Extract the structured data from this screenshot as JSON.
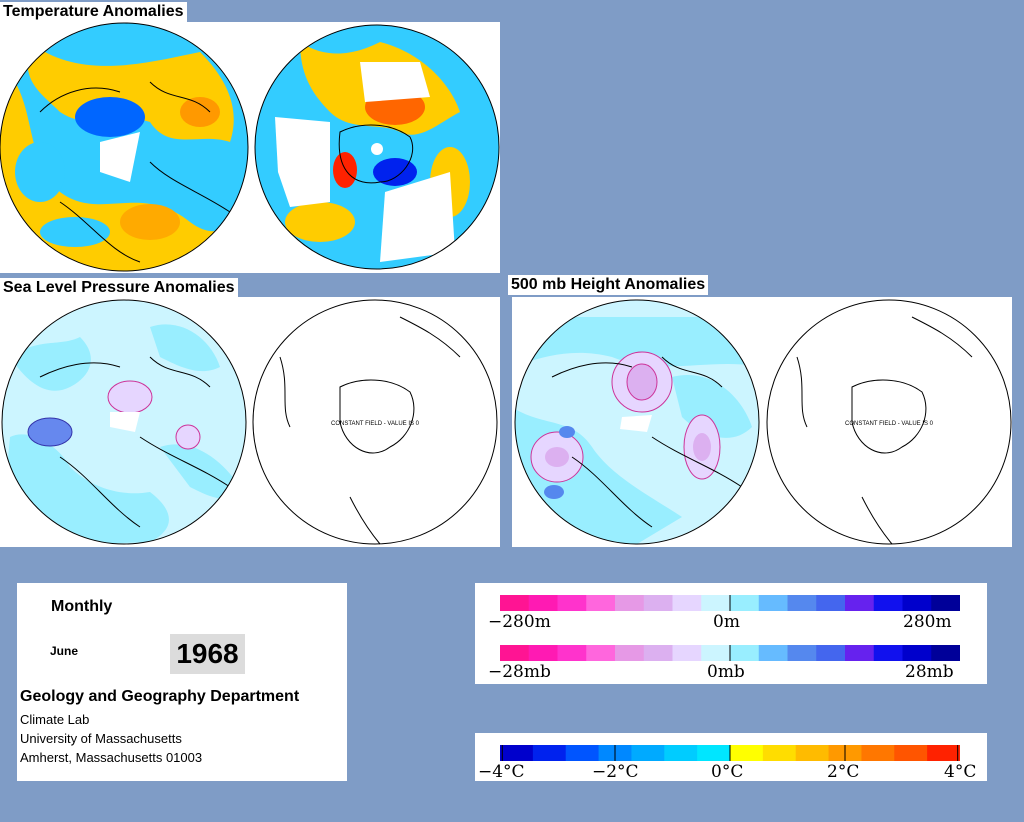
{
  "titles": {
    "temperature": "Temperature Anomalies",
    "slp": "Sea Level Pressure Anomalies",
    "height500": "500 mb Height Anomalies"
  },
  "maps": {
    "constant_field_text": "CONSTANT FIELD - VALUE IS 0"
  },
  "info": {
    "period": "Monthly",
    "month": "June",
    "year": "1968",
    "department": "Geology and Geography Department",
    "lab": "Climate Lab",
    "university": "University of Massachusetts",
    "address": "Amherst, Massachusetts 01003"
  },
  "legends": {
    "height": {
      "labels": [
        "−280m",
        "0m",
        "280m"
      ],
      "colors": [
        "#ff1493",
        "#ff1ab3",
        "#ff33cc",
        "#ff66dd",
        "#e699e6",
        "#dcb0f0",
        "#e6d6ff",
        "#ccf5ff",
        "#99eeff",
        "#66bbff",
        "#5588ee",
        "#4466ee",
        "#6622ee",
        "#1111ee",
        "#0000cc",
        "#000099"
      ]
    },
    "pressure": {
      "labels": [
        "−28mb",
        "0mb",
        "28mb"
      ],
      "colors": [
        "#ff1493",
        "#ff1ab3",
        "#ff33cc",
        "#ff66dd",
        "#e699e6",
        "#dcb0f0",
        "#e6d6ff",
        "#ccf5ff",
        "#99eeff",
        "#66bbff",
        "#5588ee",
        "#4466ee",
        "#6622ee",
        "#1111ee",
        "#0000cc",
        "#000099"
      ]
    },
    "temperature": {
      "labels": [
        "−4°C",
        "−2°C",
        "0°C",
        "2°C",
        "4°C"
      ],
      "colors": [
        "#0000cc",
        "#0022ee",
        "#0055ff",
        "#0088ff",
        "#00aaff",
        "#00ccff",
        "#00e6ff",
        "#ffff00",
        "#ffdd00",
        "#ffbb00",
        "#ff9900",
        "#ff7700",
        "#ff5500",
        "#ff2200"
      ]
    }
  }
}
